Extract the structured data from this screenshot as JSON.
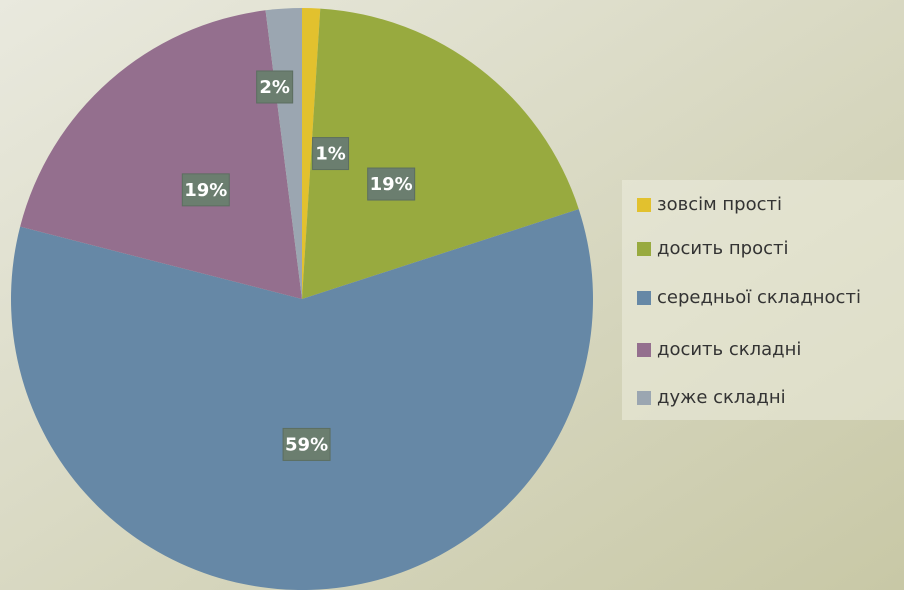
{
  "chart_data": {
    "type": "pie",
    "categories": [
      "зовсім прості",
      "досить прості",
      "середньої складності",
      "досить складні",
      "дуже складні"
    ],
    "values": [
      1,
      19,
      59,
      19,
      2
    ],
    "value_labels": [
      "1%",
      "19%",
      "59%",
      "19%",
      "2%"
    ],
    "colors": [
      "#e2c12e",
      "#98aa3f",
      "#6688a6",
      "#946f8e",
      "#9ba6b1"
    ],
    "legend": "right"
  }
}
